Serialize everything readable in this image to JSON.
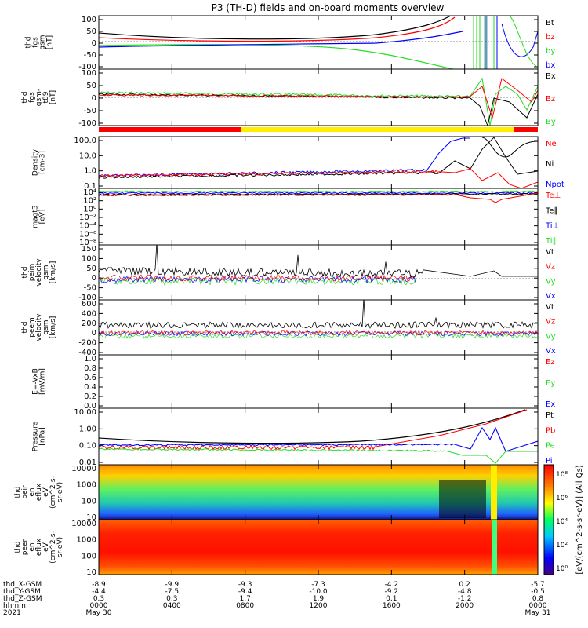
{
  "title": "P3 (TH-D) fields and on-board moments overview",
  "colors": {
    "black": "#000000",
    "red": "#ff0000",
    "green": "#22dd22",
    "blue": "#0000ff",
    "yellow": "#ffee00"
  },
  "panels": [
    {
      "id": "fgs-gsm",
      "ylabel": [
        "thd",
        "fgs",
        "gsm",
        "[nT]"
      ],
      "ticks": [
        "100",
        "50",
        "0",
        "-50",
        "-100"
      ],
      "legend": [
        {
          "t": "Bt",
          "c": "black"
        },
        {
          "t": "bz",
          "c": "red"
        },
        {
          "t": "by",
          "c": "green"
        },
        {
          "t": "bx",
          "c": "blue"
        }
      ]
    },
    {
      "id": "fgs-gsm-t89",
      "ylabel": [
        "thd",
        "fgs",
        "gsm-",
        "t89",
        "[nT]"
      ],
      "ticks": [
        "100",
        "50",
        "0",
        "-50",
        "-100"
      ],
      "legend": [
        {
          "t": "Bx",
          "c": "black"
        },
        {
          "t": "Bz",
          "c": "red"
        },
        {
          "t": "By",
          "c": "green"
        }
      ]
    },
    {
      "id": "density",
      "ylabel": [
        "Density",
        "[cm-3]"
      ],
      "ticks": [
        "100.0",
        "10.0",
        "1.0",
        "0.1"
      ],
      "legend": [
        {
          "t": "Ne",
          "c": "red"
        },
        {
          "t": "Ni",
          "c": "black"
        },
        {
          "t": "Npot",
          "c": "blue"
        }
      ]
    },
    {
      "id": "magt3",
      "ylabel": [
        "magt3",
        "[eV]"
      ],
      "ticks": [
        "10⁴",
        "10²",
        "10⁰",
        "10⁻²",
        "10⁻⁴",
        "10⁻⁶",
        "10⁻⁸"
      ],
      "legend": [
        {
          "t": "Te⊥",
          "c": "red"
        },
        {
          "t": "Te∥",
          "c": "black"
        },
        {
          "t": "Ti⊥",
          "c": "blue"
        },
        {
          "t": "Ti∥",
          "c": "green"
        }
      ]
    },
    {
      "id": "peim-velocity",
      "ylabel": [
        "thd",
        "peim",
        "velocity",
        "gsm",
        "[km/s]"
      ],
      "ticks": [
        "150",
        "100",
        "50",
        "0",
        "-50",
        "-100"
      ],
      "legend": [
        {
          "t": "Vt",
          "c": "black"
        },
        {
          "t": "Vz",
          "c": "red"
        },
        {
          "t": "Vy",
          "c": "green"
        },
        {
          "t": "Vx",
          "c": "blue"
        }
      ]
    },
    {
      "id": "peem-velocity",
      "ylabel": [
        "thd",
        "peem",
        "velocity",
        "gsm",
        "[km/s]"
      ],
      "ticks": [
        "600",
        "400",
        "200",
        "0",
        "-200",
        "-400"
      ],
      "legend": [
        {
          "t": "Vt",
          "c": "black"
        },
        {
          "t": "Vz",
          "c": "red"
        },
        {
          "t": "Vy",
          "c": "green"
        },
        {
          "t": "Vx",
          "c": "blue"
        }
      ]
    },
    {
      "id": "efield",
      "ylabel": [
        "E=-VxB",
        "[mV/m]"
      ],
      "ticks": [
        "1.0",
        "0.8",
        "0.6",
        "0.4",
        "0.2",
        "0.0"
      ],
      "legend": [
        {
          "t": "Ez",
          "c": "red"
        },
        {
          "t": "Ey",
          "c": "green"
        },
        {
          "t": "Ex",
          "c": "blue"
        }
      ]
    },
    {
      "id": "pressure",
      "ylabel": [
        "Pressure",
        "[nPa]"
      ],
      "ticks": [
        "10.00",
        "1.00",
        "0.10",
        "0.01"
      ],
      "legend": [
        {
          "t": "Pt",
          "c": "black"
        },
        {
          "t": "Pb",
          "c": "red"
        },
        {
          "t": "Pe",
          "c": "green"
        },
        {
          "t": "Pi",
          "c": "blue"
        }
      ]
    },
    {
      "id": "peir-eflux",
      "ylabel": [
        "thd",
        "peir",
        "en",
        "eflux",
        "eV",
        "(cm^2-s-",
        "sr-eV)"
      ],
      "ticks": [
        "10000",
        "1000",
        "100",
        "10"
      ],
      "legend": []
    },
    {
      "id": "peer-eflux",
      "ylabel": [
        "thd",
        "peer",
        "en",
        "eflux",
        "eV",
        "(cm^2-s-",
        "sr-eV)"
      ],
      "ticks": [
        "10000",
        "1000",
        "100",
        "10"
      ],
      "legend": []
    }
  ],
  "colorbar": {
    "ticks": [
      "10⁸",
      "10⁶",
      "10⁴",
      "10²",
      "10⁰"
    ],
    "label": "[eV/(cm^2-s-sr-eV)] (All Qs)"
  },
  "xaxis": {
    "row_labels": [
      "thd_X-GSM",
      "thd_Y-GSM",
      "thd_Z-GSM",
      "hhmm",
      "2021"
    ],
    "columns": [
      {
        "v": [
          "-8.9",
          "-4.4",
          "0.3",
          "0000",
          "May 30"
        ]
      },
      {
        "v": [
          "-9.9",
          "-7.5",
          "0.3",
          "0400",
          ""
        ]
      },
      {
        "v": [
          "-9.3",
          "-9.4",
          "1.7",
          "0800",
          ""
        ]
      },
      {
        "v": [
          "-7.3",
          "-10.0",
          "1.9",
          "1200",
          ""
        ]
      },
      {
        "v": [
          "-4.2",
          "-9.2",
          "0.1",
          "1600",
          ""
        ]
      },
      {
        "v": [
          "0.2",
          "-4.8",
          "-1.2",
          "2000",
          ""
        ]
      },
      {
        "v": [
          "-5.7",
          "-0.5",
          "0.8",
          "0000",
          "May 31"
        ]
      }
    ]
  },
  "chart_data": {
    "type": "line",
    "title": "P3 (TH-D) fields and on-board moments overview",
    "x": [
      "0000",
      "0400",
      "0800",
      "1200",
      "1600",
      "2000",
      "0000"
    ],
    "xlabel": "hhmm",
    "series": [
      {
        "name": "Bt",
        "values": [
          30,
          25,
          22,
          24,
          32,
          90,
          100
        ]
      },
      {
        "name": "bz",
        "values": [
          25,
          20,
          18,
          20,
          28,
          80,
          -40
        ]
      },
      {
        "name": "by",
        "values": [
          -10,
          -5,
          -2,
          -8,
          -20,
          -60,
          -100
        ]
      },
      {
        "name": "bx",
        "values": [
          -15,
          -12,
          -10,
          -12,
          -15,
          40,
          -80
        ]
      },
      {
        "name": "Ni",
        "values": [
          0.5,
          0.6,
          0.6,
          0.8,
          1.0,
          5.0,
          10.0
        ]
      },
      {
        "name": "Ne",
        "values": [
          0.6,
          0.6,
          0.7,
          0.9,
          1.1,
          1.0,
          5.0
        ]
      },
      {
        "name": "Pt",
        "values": [
          0.4,
          0.3,
          0.3,
          0.35,
          0.6,
          3.0,
          10.0
        ]
      },
      {
        "name": "Pb",
        "values": [
          0.3,
          0.1,
          0.05,
          0.08,
          0.3,
          2.0,
          10.0
        ]
      },
      {
        "name": "Pi",
        "values": [
          0.25,
          0.2,
          0.2,
          0.25,
          0.25,
          0.15,
          0.2
        ]
      },
      {
        "name": "Pe",
        "values": [
          0.15,
          0.08,
          0.06,
          0.08,
          0.1,
          0.05,
          0.1
        ]
      }
    ]
  }
}
